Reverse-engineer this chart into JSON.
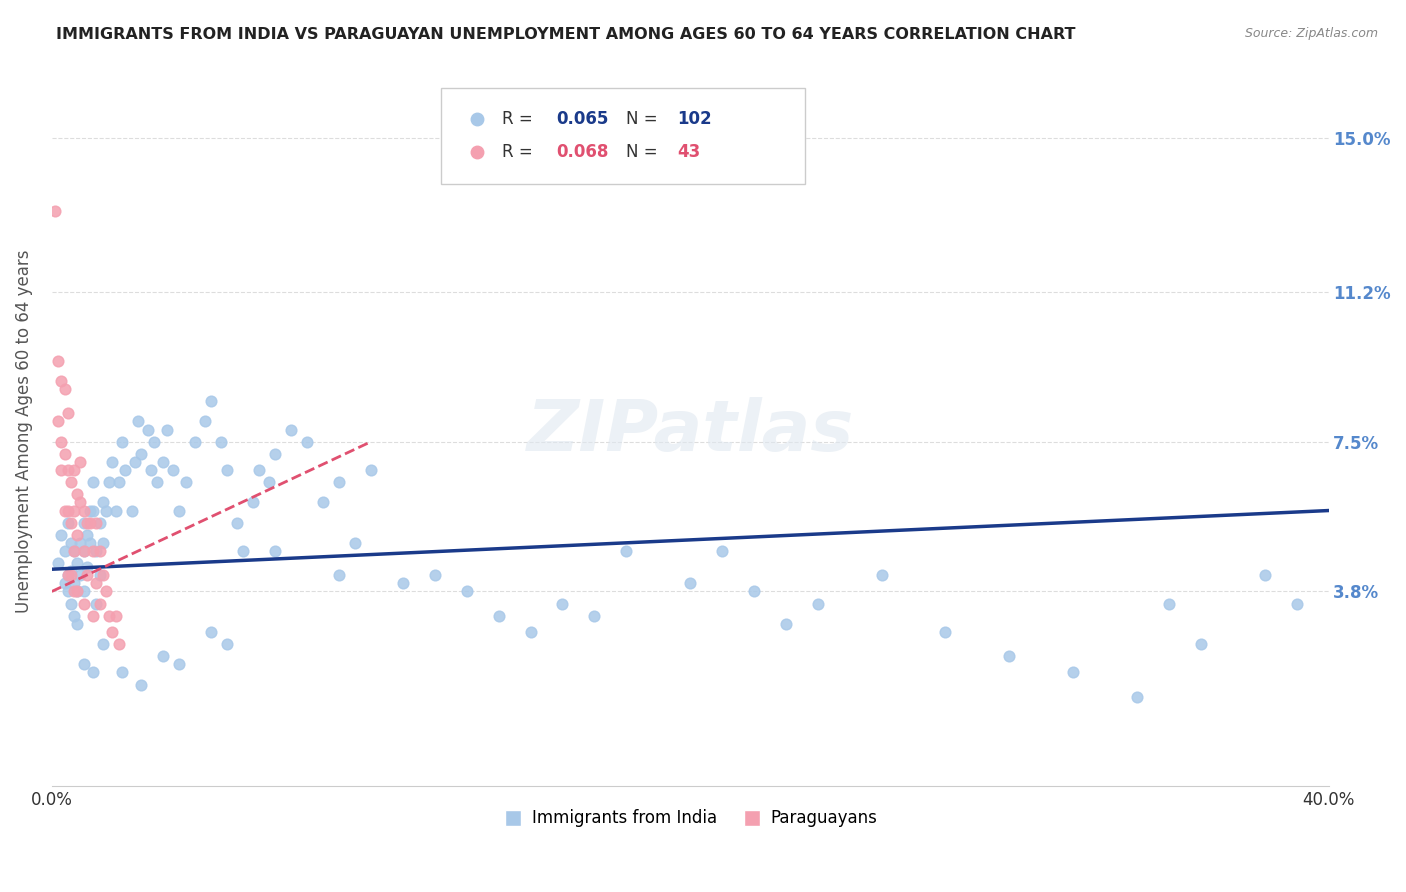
{
  "title": "IMMIGRANTS FROM INDIA VS PARAGUAYAN UNEMPLOYMENT AMONG AGES 60 TO 64 YEARS CORRELATION CHART",
  "source": "Source: ZipAtlas.com",
  "ylabel": "Unemployment Among Ages 60 to 64 years",
  "ytick_labels": [
    "15.0%",
    "11.2%",
    "7.5%",
    "3.8%"
  ],
  "ytick_values": [
    0.15,
    0.112,
    0.075,
    0.038
  ],
  "xlim": [
    0.0,
    0.4
  ],
  "ylim": [
    -0.01,
    0.165
  ],
  "legend_blue_r": "0.065",
  "legend_blue_n": "102",
  "legend_pink_r": "0.068",
  "legend_pink_n": "43",
  "legend_label_blue": "Immigrants from India",
  "legend_label_pink": "Paraguayans",
  "watermark": "ZIPatlas",
  "blue_color": "#a8c8e8",
  "blue_line_color": "#1a3a8a",
  "pink_color": "#f4a0b0",
  "pink_line_color": "#e05070",
  "scatter_blue_x": [
    0.002,
    0.003,
    0.004,
    0.004,
    0.005,
    0.005,
    0.005,
    0.006,
    0.006,
    0.006,
    0.007,
    0.007,
    0.007,
    0.008,
    0.008,
    0.008,
    0.009,
    0.009,
    0.01,
    0.01,
    0.01,
    0.011,
    0.011,
    0.012,
    0.012,
    0.013,
    0.013,
    0.014,
    0.014,
    0.015,
    0.015,
    0.016,
    0.016,
    0.017,
    0.018,
    0.019,
    0.02,
    0.021,
    0.022,
    0.023,
    0.025,
    0.026,
    0.027,
    0.028,
    0.03,
    0.031,
    0.032,
    0.033,
    0.035,
    0.036,
    0.038,
    0.04,
    0.042,
    0.045,
    0.048,
    0.05,
    0.053,
    0.055,
    0.058,
    0.06,
    0.063,
    0.065,
    0.068,
    0.07,
    0.075,
    0.08,
    0.085,
    0.09,
    0.095,
    0.1,
    0.11,
    0.12,
    0.13,
    0.14,
    0.15,
    0.16,
    0.17,
    0.18,
    0.2,
    0.21,
    0.22,
    0.23,
    0.24,
    0.26,
    0.28,
    0.3,
    0.32,
    0.34,
    0.35,
    0.36,
    0.38,
    0.39,
    0.01,
    0.013,
    0.016,
    0.022,
    0.028,
    0.035,
    0.04,
    0.05,
    0.055,
    0.07,
    0.09
  ],
  "scatter_blue_y": [
    0.045,
    0.052,
    0.048,
    0.04,
    0.055,
    0.042,
    0.038,
    0.05,
    0.043,
    0.035,
    0.048,
    0.04,
    0.032,
    0.045,
    0.038,
    0.03,
    0.05,
    0.042,
    0.055,
    0.048,
    0.038,
    0.052,
    0.044,
    0.058,
    0.05,
    0.065,
    0.058,
    0.048,
    0.035,
    0.055,
    0.042,
    0.06,
    0.05,
    0.058,
    0.065,
    0.07,
    0.058,
    0.065,
    0.075,
    0.068,
    0.058,
    0.07,
    0.08,
    0.072,
    0.078,
    0.068,
    0.075,
    0.065,
    0.07,
    0.078,
    0.068,
    0.058,
    0.065,
    0.075,
    0.08,
    0.085,
    0.075,
    0.068,
    0.055,
    0.048,
    0.06,
    0.068,
    0.065,
    0.072,
    0.078,
    0.075,
    0.06,
    0.065,
    0.05,
    0.068,
    0.04,
    0.042,
    0.038,
    0.032,
    0.028,
    0.035,
    0.032,
    0.048,
    0.04,
    0.048,
    0.038,
    0.03,
    0.035,
    0.042,
    0.028,
    0.022,
    0.018,
    0.012,
    0.035,
    0.025,
    0.042,
    0.035,
    0.02,
    0.018,
    0.025,
    0.018,
    0.015,
    0.022,
    0.02,
    0.028,
    0.025,
    0.048,
    0.042
  ],
  "scatter_pink_x": [
    0.001,
    0.002,
    0.002,
    0.003,
    0.003,
    0.003,
    0.004,
    0.004,
    0.004,
    0.005,
    0.005,
    0.005,
    0.005,
    0.006,
    0.006,
    0.006,
    0.007,
    0.007,
    0.007,
    0.007,
    0.008,
    0.008,
    0.008,
    0.009,
    0.009,
    0.01,
    0.01,
    0.01,
    0.011,
    0.011,
    0.012,
    0.013,
    0.013,
    0.014,
    0.014,
    0.015,
    0.015,
    0.016,
    0.017,
    0.018,
    0.019,
    0.02,
    0.021
  ],
  "scatter_pink_y": [
    0.132,
    0.095,
    0.08,
    0.09,
    0.075,
    0.068,
    0.088,
    0.072,
    0.058,
    0.082,
    0.068,
    0.058,
    0.042,
    0.065,
    0.055,
    0.042,
    0.068,
    0.058,
    0.048,
    0.038,
    0.062,
    0.052,
    0.038,
    0.07,
    0.06,
    0.058,
    0.048,
    0.035,
    0.055,
    0.042,
    0.055,
    0.048,
    0.032,
    0.055,
    0.04,
    0.048,
    0.035,
    0.042,
    0.038,
    0.032,
    0.028,
    0.032,
    0.025
  ],
  "blue_trendline_x": [
    0.0,
    0.4
  ],
  "blue_trendline_y": [
    0.0435,
    0.058
  ],
  "pink_trendline_x": [
    0.0,
    0.1
  ],
  "pink_trendline_y": [
    0.038,
    0.075
  ],
  "grid_color": "#dddddd",
  "title_color": "#222222",
  "axis_label_color": "#555555",
  "right_axis_color": "#5588cc"
}
